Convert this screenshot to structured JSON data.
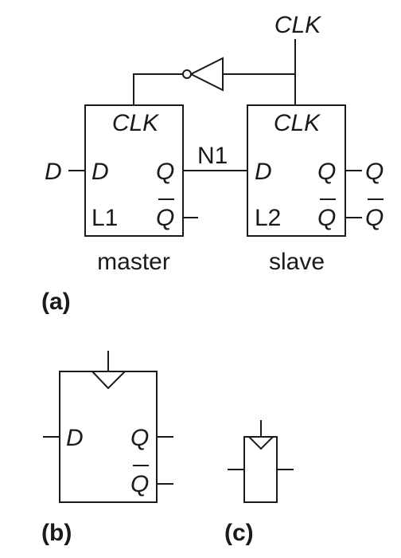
{
  "part_a": {
    "clk_input": "CLK",
    "d_input": "D",
    "q_output": "Q",
    "qbar_output": "Q",
    "net_label": "N1",
    "master": {
      "clk": "CLK",
      "d": "D",
      "q": "Q",
      "qbar": "Q",
      "name": "L1",
      "caption": "master"
    },
    "slave": {
      "clk": "CLK",
      "d": "D",
      "q": "Q",
      "qbar": "Q",
      "name": "L2",
      "caption": "slave"
    },
    "label": "(a)"
  },
  "part_b": {
    "d": "D",
    "q": "Q",
    "qbar": "Q",
    "label": "(b)"
  },
  "part_c": {
    "label": "(c)"
  }
}
